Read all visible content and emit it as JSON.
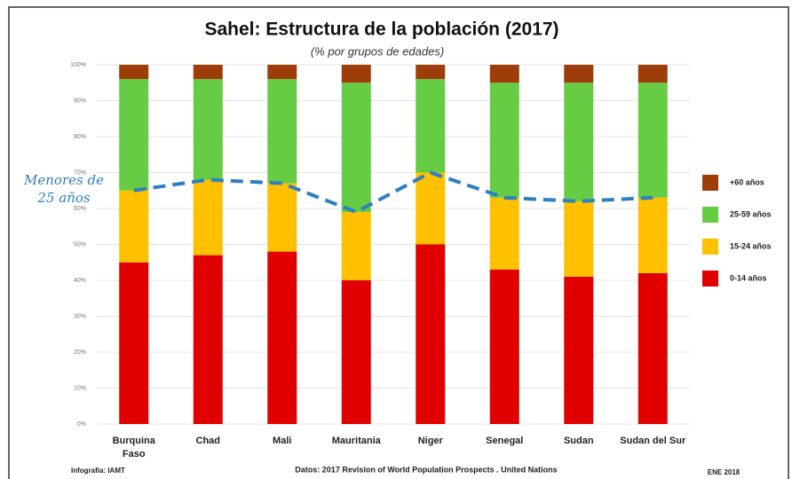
{
  "chart_data": {
    "type": "stacked_bar",
    "title": "Sahel: Estructura de la población (2017)",
    "subtitle": "(% por grupos de edades)",
    "categories": [
      "Burquina Faso",
      "Chad",
      "Mali",
      "Mauritania",
      "Niger",
      "Senegal",
      "Sudan",
      "Sudan del Sur"
    ],
    "series": [
      {
        "name": "0-14  años",
        "color": "#e00000",
        "values": [
          45,
          47,
          48,
          40,
          50,
          43,
          41,
          42
        ]
      },
      {
        "name": "15-24 años",
        "color": "#ffc000",
        "values": [
          20,
          21,
          19,
          19,
          20,
          20,
          21,
          21
        ]
      },
      {
        "name": "25-59  años",
        "color": "#66cc44",
        "values": [
          31,
          28,
          29,
          36,
          26,
          32,
          33,
          32
        ]
      },
      {
        "name": "+60  años",
        "color": "#9c3d0a",
        "values": [
          4,
          4,
          4,
          5,
          4,
          5,
          5,
          5
        ]
      }
    ],
    "line": {
      "name": "Menores de 25 años",
      "color": "#2f7fc1",
      "values": [
        65,
        68,
        67,
        59,
        70,
        63,
        62,
        63
      ]
    },
    "ylim": [
      0,
      100
    ],
    "yticks": [
      {
        "value": 0,
        "label": "0%"
      },
      {
        "value": 10,
        "label": "10%"
      },
      {
        "value": 20,
        "label": "20%"
      },
      {
        "value": 30,
        "label": "30%"
      },
      {
        "value": 40,
        "label": "40%"
      },
      {
        "value": 50,
        "label": "50%"
      },
      {
        "value": 60,
        "label": "60%"
      },
      {
        "value": 70,
        "label": "70%"
      },
      {
        "value": 80,
        "label": "80%"
      },
      {
        "value": 90,
        "label": "90%"
      },
      {
        "value": 100,
        "label": "100%"
      }
    ],
    "grid": true,
    "footer_left": "Infografía: IAMT",
    "footer_center": "Datos: 2017 Revision of World Population Prospects . United Nations",
    "footer_right": "ENE 2018"
  }
}
